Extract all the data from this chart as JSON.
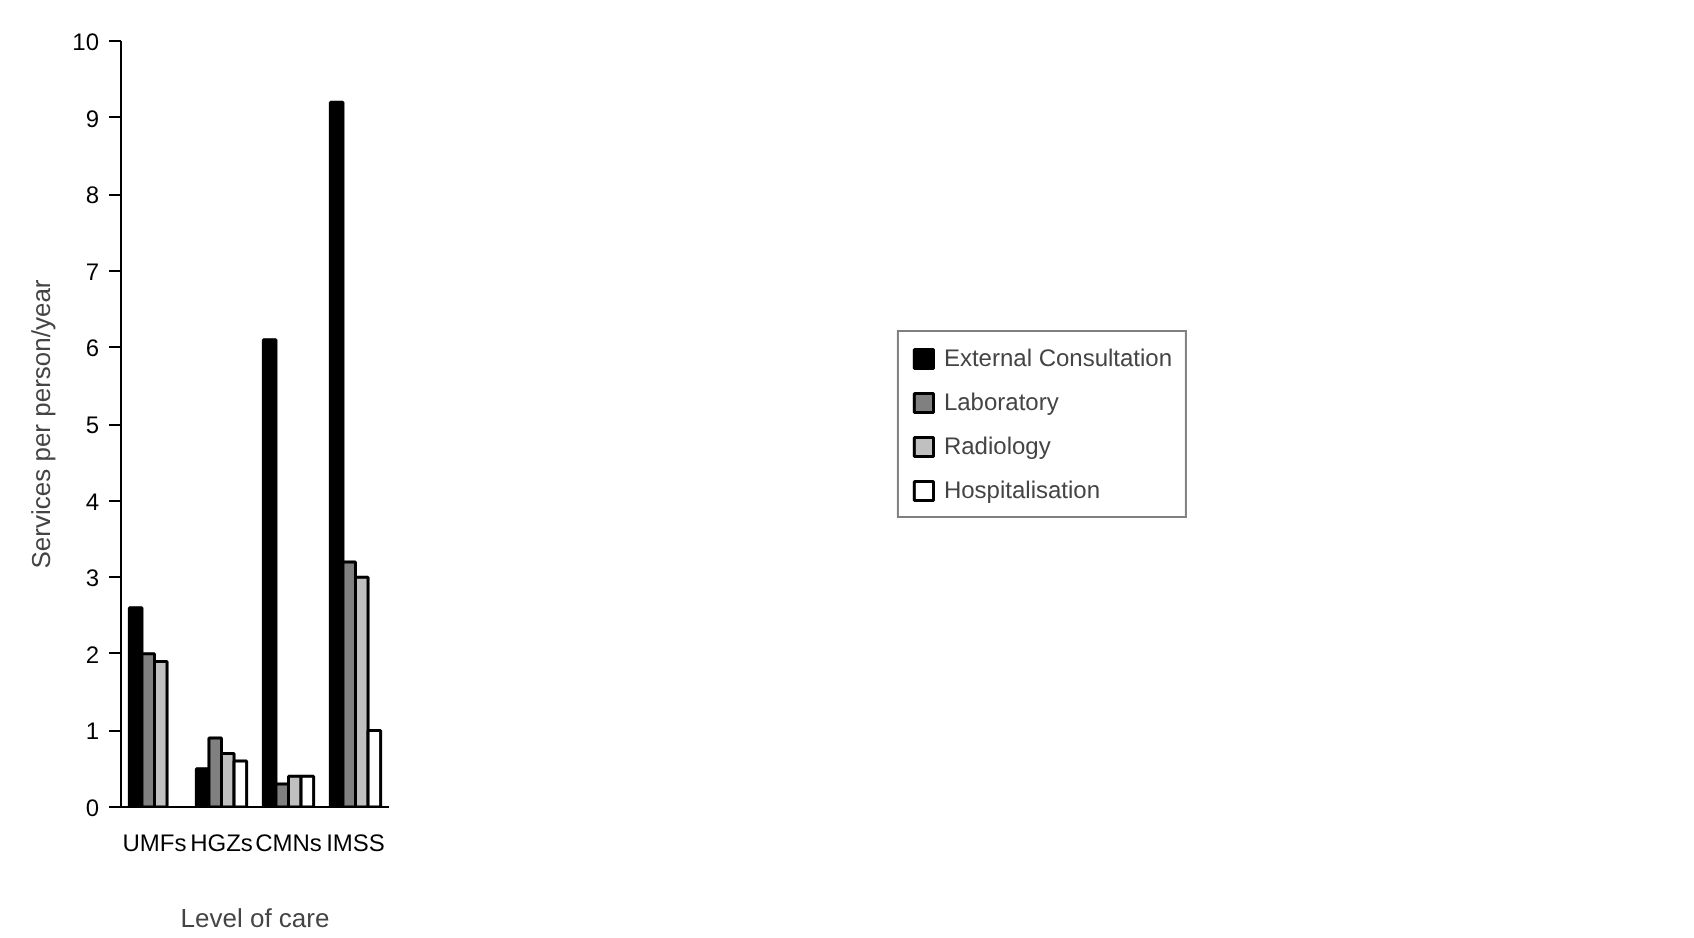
{
  "chart_data": {
    "type": "bar",
    "xlabel": "Level of care",
    "ylabel": "Services per person/year",
    "categories": [
      "UMFs",
      "HGZs",
      "CMNs",
      "IMSS"
    ],
    "series": [
      {
        "name": "External Consultation",
        "color": "#000000",
        "values": [
          2.6,
          0.5,
          6.1,
          9.2
        ]
      },
      {
        "name": "Laboratory",
        "color": "#808080",
        "values": [
          2.0,
          0.9,
          0.3,
          3.2
        ]
      },
      {
        "name": "Radiology",
        "color": "#c0c0c0",
        "values": [
          1.9,
          0.7,
          0.4,
          3.0
        ]
      },
      {
        "name": "Hospitalisation",
        "color": "#ffffff",
        "values": [
          null,
          0.6,
          0.4,
          1.0
        ]
      }
    ],
    "ylim": [
      0,
      10
    ],
    "yticks": [
      0,
      1,
      2,
      3,
      4,
      5,
      6,
      7,
      8,
      9,
      10
    ],
    "grid": false,
    "legend": "right"
  }
}
